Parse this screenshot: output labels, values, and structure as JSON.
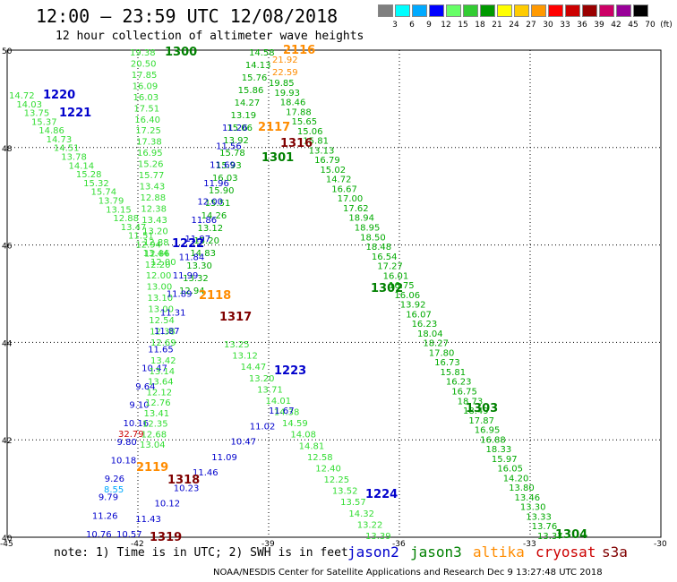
{
  "header": {
    "title": "12:00 – 23:59 UTC 12/08/2018",
    "subtitle": "12 hour collection of altimeter wave heights"
  },
  "colors": {
    "jason2": "#0000cc",
    "jason3": "#008000",
    "altika": "#ff8c00",
    "cryosat": "#cc0000",
    "s3a": "#800000",
    "light_green": "#33dd33",
    "mid_green": "#00aa00"
  },
  "scale": {
    "unit": "(ft)",
    "colors": [
      "#7f7f7f",
      "#00ffff",
      "#00aaff",
      "#0000ff",
      "#66ff66",
      "#33cc33",
      "#009900",
      "#ffff00",
      "#ffcc00",
      "#ff9900",
      "#ff0000",
      "#cc0000",
      "#990000",
      "#cc0066",
      "#990099",
      "#000000"
    ],
    "labels": [
      "3",
      "6",
      "9",
      "12",
      "15",
      "18",
      "21",
      "24",
      "27",
      "30",
      "33",
      "36",
      "39",
      "42",
      "45",
      "70"
    ]
  },
  "axes": {
    "lat_labels": [
      "50",
      "48",
      "46",
      "44",
      "42",
      "40"
    ],
    "lon_labels": [
      "-45",
      "-42",
      "-39",
      "-36",
      "-33",
      "-30"
    ]
  },
  "passes": [
    {
      "label": "1300",
      "color": "#008000"
    },
    {
      "label": "2116",
      "color": "#ff8c00"
    },
    {
      "label": "1220",
      "color": "#0000cc"
    },
    {
      "label": "1221",
      "color": "#0000cc"
    },
    {
      "label": "2117",
      "color": "#ff8c00"
    },
    {
      "label": "1316",
      "color": "#800000"
    },
    {
      "label": "1301",
      "color": "#008000"
    },
    {
      "label": "1222",
      "color": "#0000cc"
    },
    {
      "label": "2118",
      "color": "#ff8c00"
    },
    {
      "label": "1317",
      "color": "#800000"
    },
    {
      "label": "1302",
      "color": "#008000"
    },
    {
      "label": "1223",
      "color": "#0000cc"
    },
    {
      "label": "1303",
      "color": "#008000"
    },
    {
      "label": "2119",
      "color": "#ff8c00"
    },
    {
      "label": "1318",
      "color": "#800000"
    },
    {
      "label": "1224",
      "color": "#0000cc"
    },
    {
      "label": "1319",
      "color": "#800000"
    },
    {
      "label": "1304",
      "color": "#008000"
    }
  ],
  "tracks": [
    {
      "name": "jason3-1300",
      "color": "#33dd33",
      "values": [
        "19.38",
        "20.50",
        "17.85",
        "16.09",
        "16.03",
        "17.51",
        "16.40",
        "17.25",
        "17.38",
        "16.95",
        "15.26",
        "15.77",
        "13.43",
        "12.88",
        "12.38",
        "13.43",
        "13.20",
        "12.88",
        "12.86",
        "12.20",
        "12.00",
        "13.00",
        "13.10",
        "13.00",
        "12.54",
        "12.38",
        "12.69"
      ]
    },
    {
      "name": "jason2-1220",
      "color": "#33dd33",
      "values": [
        "14.72",
        "14.03",
        "13.75",
        "15.37",
        "14.86",
        "14.73",
        "14.51",
        "13.78",
        "14.14",
        "15.28",
        "15.32",
        "15.74",
        "13.79",
        "13.15",
        "12.88",
        "13.47",
        "11.51",
        "12.94",
        "13.44",
        "12.00"
      ]
    },
    {
      "name": "altika-2116",
      "color": "#00aa00",
      "values": [
        "14.58",
        "14.13",
        "15.76",
        "15.86",
        "14.27",
        "13.19",
        "15.06",
        "13.92",
        "15.78",
        "15.93",
        "16.03",
        "15.90",
        "15.51",
        "14.26",
        "13.12",
        "15.20",
        "14.83",
        "13.30",
        "13.32",
        "12.94"
      ]
    },
    {
      "name": "jason3-1301",
      "color": "#00aa00",
      "values": [
        "19.85",
        "19.93",
        "18.46",
        "17.88",
        "15.65",
        "15.06",
        "15.81",
        "13.13",
        "16.79",
        "15.02",
        "14.72",
        "16.67",
        "17.00",
        "17.62",
        "18.94",
        "18.95",
        "18.50",
        "18.48",
        "16.54",
        "17.27",
        "16.01",
        "16.75",
        "16.06",
        "13.92",
        "16.07",
        "16.23",
        "18.04",
        "18.27",
        "17.80",
        "16.73",
        "15.81",
        "16.23",
        "16.75",
        "18.73",
        "18.49",
        "17.87",
        "16.95",
        "16.88",
        "18.33",
        "15.97",
        "16.05",
        "14.20",
        "13.80",
        "13.46",
        "13.30",
        "13.33",
        "13.76",
        "13.37"
      ]
    },
    {
      "name": "jason2-1221",
      "color": "#0000cc",
      "values": [
        "11.26",
        "11.56",
        "11.69",
        "11.96",
        "12.00",
        "11.86",
        "11.97",
        "11.84",
        "11.99",
        "11.89",
        "11.31",
        "11.87",
        "11.65",
        "10.47",
        "9.64",
        "9.10",
        "10.16",
        "9.80",
        "10.18",
        "9.26",
        "9.79",
        "11.26",
        "10.76"
      ]
    },
    {
      "name": "jason2-1223-track",
      "color": "#33dd33",
      "values": [
        "13.25",
        "13.12",
        "14.47",
        "13.20",
        "13.71",
        "14.01",
        "14.38",
        "14.59",
        "14.08",
        "14.81",
        "12.58",
        "12.40",
        "12.25",
        "13.52",
        "13.57",
        "14.32",
        "13.22",
        "13.39"
      ]
    },
    {
      "name": "jason2-1222-south",
      "color": "#33dd33",
      "values": [
        "13.42",
        "13.14",
        "13.64",
        "12.12",
        "12.76",
        "13.41",
        "12.35",
        "12.68",
        "13.04"
      ]
    },
    {
      "name": "misc-blue",
      "color": "#0000cc",
      "values": [
        "11.67",
        "11.02",
        "10.47",
        "11.09",
        "11.46",
        "10.23",
        "10.12",
        "11.43",
        "10.57"
      ]
    },
    {
      "name": "highlights",
      "color": "#ff8c00",
      "values": [
        "21.92",
        "22.59"
      ]
    },
    {
      "name": "cryosat-high",
      "color": "#cc0000",
      "values": [
        "32.79"
      ]
    },
    {
      "name": "light-blue",
      "color": "#00aaff",
      "values": [
        "8.55"
      ]
    }
  ],
  "note": "note: 1) Time is in UTC; 2) SWH is in feet",
  "legend": [
    {
      "label": "jason2",
      "color": "#0000cc"
    },
    {
      "label": "jason3",
      "color": "#008000"
    },
    {
      "label": "altika",
      "color": "#ff8c00"
    },
    {
      "label": "cryosat",
      "color": "#cc0000"
    },
    {
      "label": "s3a",
      "color": "#800000"
    }
  ],
  "footer": "NOAA/NESDIS Center for Satellite Applications and Research    Dec  9 13:27:48 UTC 2018"
}
